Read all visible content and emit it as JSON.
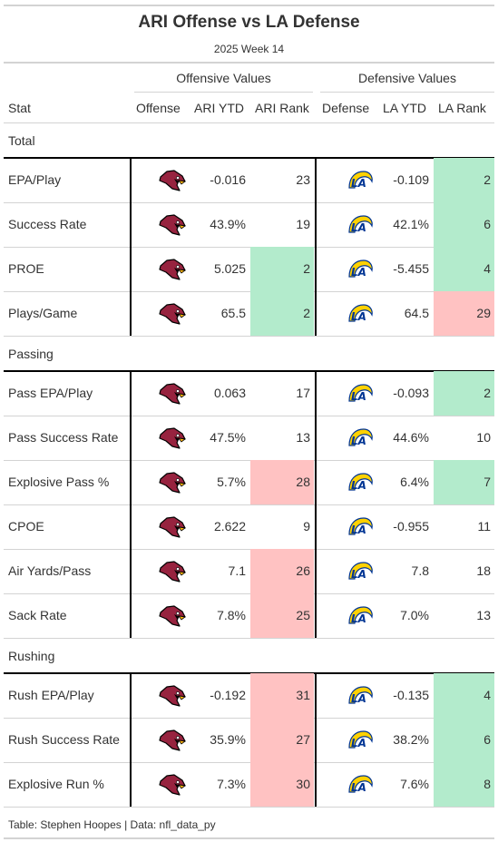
{
  "title": "ARI Offense vs LA Defense",
  "subtitle": "2025 Week 14",
  "spanners": {
    "offense": "Offensive Values",
    "defense": "Defensive Values"
  },
  "columns": {
    "stat": "Stat",
    "offense": "Offense",
    "ari_ytd": "ARI YTD",
    "ari_rank": "ARI Rank",
    "defense": "Defense",
    "la_ytd": "LA YTD",
    "la_rank": "LA Rank"
  },
  "colors": {
    "good": "#b3ebcc",
    "bad": "#ffc2c2",
    "cardinals_red": "#97233f",
    "rams_blue": "#003594",
    "rams_gold": "#ffd100"
  },
  "icons": {
    "offense_logo": "cardinals-logo-icon",
    "defense_logo": "rams-logo-icon"
  },
  "groups": [
    {
      "name": "Total",
      "rows": [
        {
          "stat": "EPA/Play",
          "ari_ytd": "-0.016",
          "ari_rank": "23",
          "ari_rank_class": "",
          "la_ytd": "-0.109",
          "la_rank": "2",
          "la_rank_class": "good"
        },
        {
          "stat": "Success Rate",
          "ari_ytd": "43.9%",
          "ari_rank": "19",
          "ari_rank_class": "",
          "la_ytd": "42.1%",
          "la_rank": "6",
          "la_rank_class": "good"
        },
        {
          "stat": "PROE",
          "ari_ytd": "5.025",
          "ari_rank": "2",
          "ari_rank_class": "good",
          "la_ytd": "-5.455",
          "la_rank": "4",
          "la_rank_class": "good"
        },
        {
          "stat": "Plays/Game",
          "ari_ytd": "65.5",
          "ari_rank": "2",
          "ari_rank_class": "good",
          "la_ytd": "64.5",
          "la_rank": "29",
          "la_rank_class": "bad"
        }
      ]
    },
    {
      "name": "Passing",
      "rows": [
        {
          "stat": "Pass EPA/Play",
          "ari_ytd": "0.063",
          "ari_rank": "17",
          "ari_rank_class": "",
          "la_ytd": "-0.093",
          "la_rank": "2",
          "la_rank_class": "good"
        },
        {
          "stat": "Pass Success Rate",
          "ari_ytd": "47.5%",
          "ari_rank": "13",
          "ari_rank_class": "",
          "la_ytd": "44.6%",
          "la_rank": "10",
          "la_rank_class": ""
        },
        {
          "stat": "Explosive Pass %",
          "ari_ytd": "5.7%",
          "ari_rank": "28",
          "ari_rank_class": "bad",
          "la_ytd": "6.4%",
          "la_rank": "7",
          "la_rank_class": "good"
        },
        {
          "stat": "CPOE",
          "ari_ytd": "2.622",
          "ari_rank": "9",
          "ari_rank_class": "",
          "la_ytd": "-0.955",
          "la_rank": "11",
          "la_rank_class": ""
        },
        {
          "stat": "Air Yards/Pass",
          "ari_ytd": "7.1",
          "ari_rank": "26",
          "ari_rank_class": "bad",
          "la_ytd": "7.8",
          "la_rank": "18",
          "la_rank_class": ""
        },
        {
          "stat": "Sack Rate",
          "ari_ytd": "7.8%",
          "ari_rank": "25",
          "ari_rank_class": "bad",
          "la_ytd": "7.0%",
          "la_rank": "13",
          "la_rank_class": ""
        }
      ]
    },
    {
      "name": "Rushing",
      "rows": [
        {
          "stat": "Rush EPA/Play",
          "ari_ytd": "-0.192",
          "ari_rank": "31",
          "ari_rank_class": "bad",
          "la_ytd": "-0.135",
          "la_rank": "4",
          "la_rank_class": "good"
        },
        {
          "stat": "Rush Success Rate",
          "ari_ytd": "35.9%",
          "ari_rank": "27",
          "ari_rank_class": "bad",
          "la_ytd": "38.2%",
          "la_rank": "6",
          "la_rank_class": "good"
        },
        {
          "stat": "Explosive Run %",
          "ari_ytd": "7.3%",
          "ari_rank": "30",
          "ari_rank_class": "bad",
          "la_ytd": "7.6%",
          "la_rank": "8",
          "la_rank_class": "good"
        }
      ]
    }
  ],
  "footer": "Table: Stephen Hoopes | Data: nfl_data_py"
}
